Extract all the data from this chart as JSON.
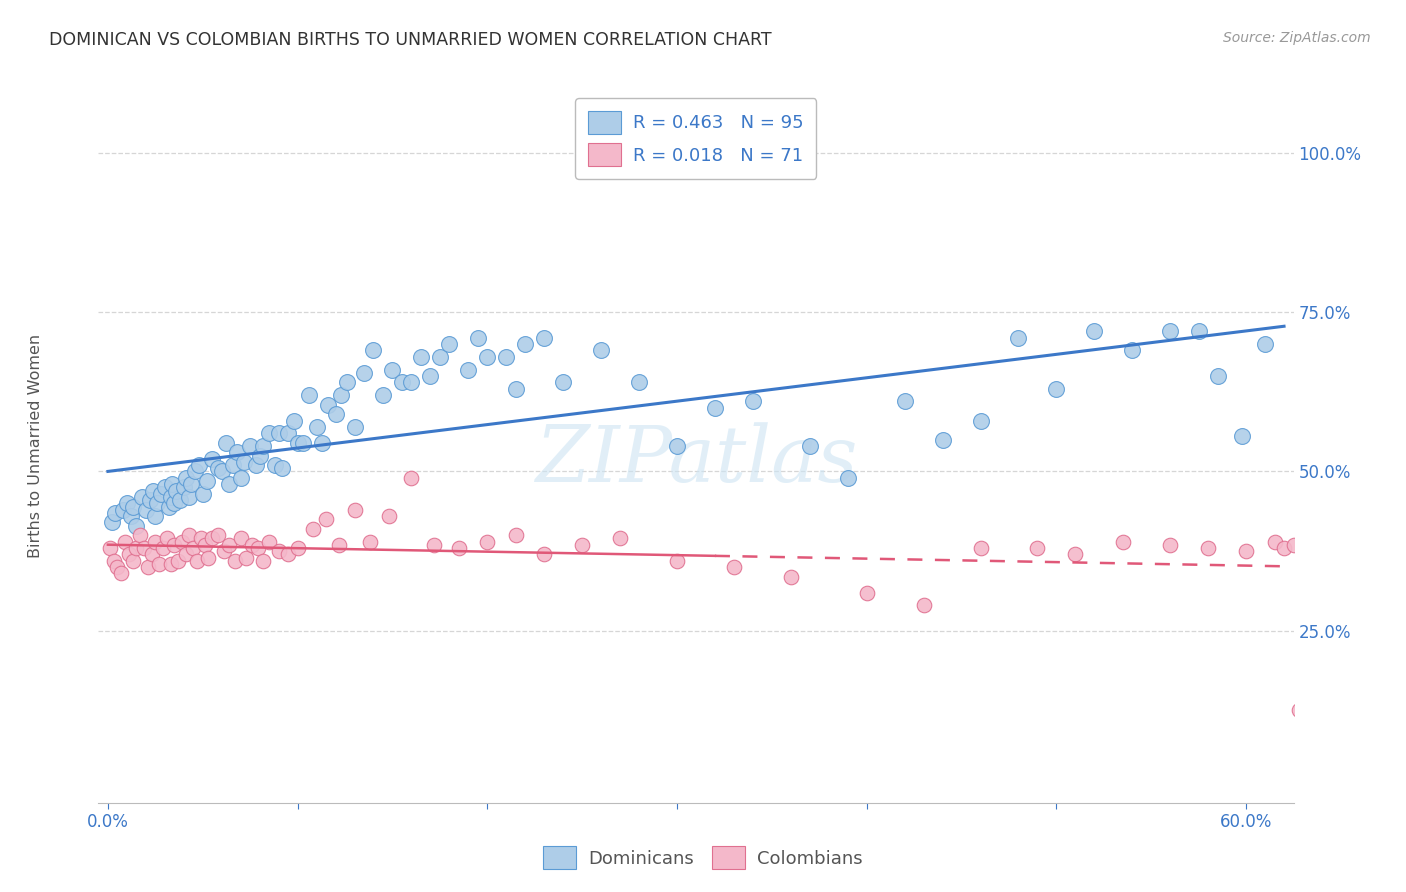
{
  "title": "DOMINICAN VS COLOMBIAN BIRTHS TO UNMARRIED WOMEN CORRELATION CHART",
  "source": "Source: ZipAtlas.com",
  "ylabel": "Births to Unmarried Women",
  "ylim": [
    -0.02,
    1.1
  ],
  "xlim": [
    -0.005,
    0.625
  ],
  "yticks": [
    0.25,
    0.5,
    0.75,
    1.0
  ],
  "ytick_labels": [
    "25.0%",
    "50.0%",
    "75.0%",
    "100.0%"
  ],
  "xticks": [
    0.0,
    0.1,
    0.2,
    0.3,
    0.4,
    0.5,
    0.6
  ],
  "xtick_labels": [
    "0.0%",
    "",
    "",
    "",
    "",
    "",
    "60.0%"
  ],
  "watermark": "ZIPatlas",
  "dominican_color": "#aecde8",
  "dominican_edge": "#5b9bd5",
  "colombian_color": "#f4b8ca",
  "colombian_edge": "#e07090",
  "dominican_line_color": "#3c78c8",
  "colombian_line_color": "#e05878",
  "dominican_R": 0.463,
  "dominican_N": 95,
  "colombian_R": 0.018,
  "colombian_N": 71,
  "dominican_x": [
    0.002,
    0.004,
    0.008,
    0.01,
    0.012,
    0.013,
    0.015,
    0.018,
    0.02,
    0.022,
    0.024,
    0.025,
    0.026,
    0.028,
    0.03,
    0.032,
    0.033,
    0.034,
    0.035,
    0.036,
    0.038,
    0.04,
    0.041,
    0.043,
    0.044,
    0.046,
    0.048,
    0.05,
    0.052,
    0.055,
    0.058,
    0.06,
    0.062,
    0.064,
    0.066,
    0.068,
    0.07,
    0.072,
    0.075,
    0.078,
    0.08,
    0.082,
    0.085,
    0.088,
    0.09,
    0.092,
    0.095,
    0.098,
    0.1,
    0.103,
    0.106,
    0.11,
    0.113,
    0.116,
    0.12,
    0.123,
    0.126,
    0.13,
    0.135,
    0.14,
    0.145,
    0.15,
    0.155,
    0.16,
    0.165,
    0.17,
    0.175,
    0.18,
    0.19,
    0.195,
    0.2,
    0.21,
    0.215,
    0.22,
    0.23,
    0.24,
    0.26,
    0.28,
    0.3,
    0.32,
    0.34,
    0.37,
    0.39,
    0.42,
    0.44,
    0.46,
    0.48,
    0.5,
    0.52,
    0.54,
    0.56,
    0.575,
    0.585,
    0.598,
    0.61
  ],
  "dominican_y": [
    0.42,
    0.435,
    0.44,
    0.45,
    0.43,
    0.445,
    0.415,
    0.46,
    0.44,
    0.455,
    0.47,
    0.43,
    0.45,
    0.465,
    0.475,
    0.445,
    0.46,
    0.48,
    0.45,
    0.47,
    0.455,
    0.475,
    0.49,
    0.46,
    0.48,
    0.5,
    0.51,
    0.465,
    0.485,
    0.52,
    0.505,
    0.5,
    0.545,
    0.48,
    0.51,
    0.53,
    0.49,
    0.515,
    0.54,
    0.51,
    0.525,
    0.54,
    0.56,
    0.51,
    0.56,
    0.505,
    0.56,
    0.58,
    0.545,
    0.545,
    0.62,
    0.57,
    0.545,
    0.605,
    0.59,
    0.62,
    0.64,
    0.57,
    0.655,
    0.69,
    0.62,
    0.66,
    0.64,
    0.64,
    0.68,
    0.65,
    0.68,
    0.7,
    0.66,
    0.71,
    0.68,
    0.68,
    0.63,
    0.7,
    0.71,
    0.64,
    0.69,
    0.64,
    0.54,
    0.6,
    0.61,
    0.54,
    0.49,
    0.61,
    0.55,
    0.58,
    0.71,
    0.63,
    0.72,
    0.69,
    0.72,
    0.72,
    0.65,
    0.555,
    0.7
  ],
  "colombian_x": [
    0.001,
    0.003,
    0.005,
    0.007,
    0.009,
    0.011,
    0.013,
    0.015,
    0.017,
    0.019,
    0.021,
    0.023,
    0.025,
    0.027,
    0.029,
    0.031,
    0.033,
    0.035,
    0.037,
    0.039,
    0.041,
    0.043,
    0.045,
    0.047,
    0.049,
    0.051,
    0.053,
    0.055,
    0.058,
    0.061,
    0.064,
    0.067,
    0.07,
    0.073,
    0.076,
    0.079,
    0.082,
    0.085,
    0.09,
    0.095,
    0.1,
    0.108,
    0.115,
    0.122,
    0.13,
    0.138,
    0.148,
    0.16,
    0.172,
    0.185,
    0.2,
    0.215,
    0.23,
    0.25,
    0.27,
    0.3,
    0.33,
    0.36,
    0.4,
    0.43,
    0.46,
    0.49,
    0.51,
    0.535,
    0.56,
    0.58,
    0.6,
    0.615,
    0.62,
    0.625,
    0.628
  ],
  "colombian_y": [
    0.38,
    0.36,
    0.35,
    0.34,
    0.39,
    0.37,
    0.36,
    0.38,
    0.4,
    0.38,
    0.35,
    0.37,
    0.39,
    0.355,
    0.38,
    0.395,
    0.355,
    0.385,
    0.36,
    0.39,
    0.37,
    0.4,
    0.38,
    0.36,
    0.395,
    0.385,
    0.365,
    0.395,
    0.4,
    0.375,
    0.385,
    0.36,
    0.395,
    0.365,
    0.385,
    0.38,
    0.36,
    0.39,
    0.375,
    0.37,
    0.38,
    0.41,
    0.425,
    0.385,
    0.44,
    0.39,
    0.43,
    0.49,
    0.385,
    0.38,
    0.39,
    0.4,
    0.37,
    0.385,
    0.395,
    0.36,
    0.35,
    0.335,
    0.31,
    0.29,
    0.38,
    0.38,
    0.37,
    0.39,
    0.385,
    0.38,
    0.375,
    0.39,
    0.38,
    0.385,
    0.125
  ],
  "background_color": "#ffffff",
  "grid_color": "#cccccc"
}
